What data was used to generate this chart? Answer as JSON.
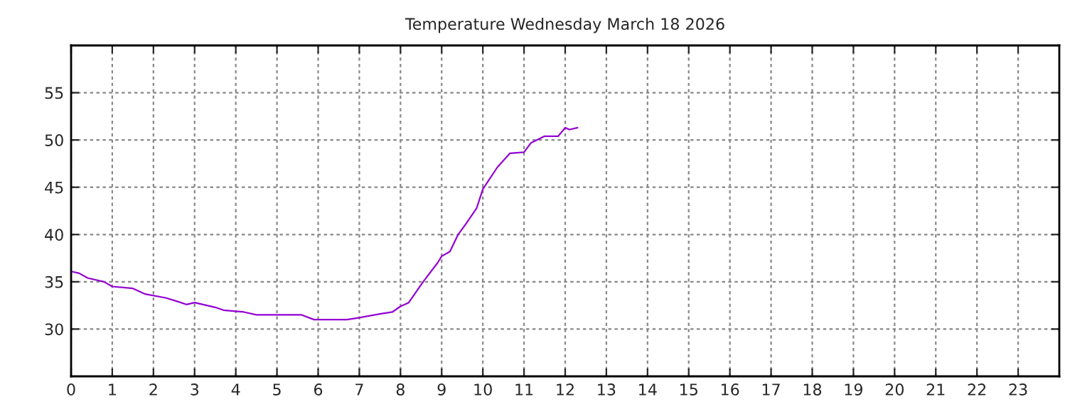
{
  "chart_data": {
    "type": "line",
    "title": "Temperature Wednesday March 18 2026",
    "series": [
      {
        "color": "#9400d3",
        "x": [
          0,
          0.2,
          0.4,
          0.8,
          1.0,
          1.5,
          1.8,
          2.3,
          2.6,
          2.8,
          3.0,
          3.5,
          3.7,
          4.2,
          4.5,
          5.6,
          5.9,
          6.7,
          7.0,
          7.5,
          7.8,
          8.0,
          8.2,
          8.55,
          8.9,
          9.0,
          9.2,
          9.4,
          9.6,
          9.85,
          10.0,
          10.35,
          10.66,
          11.0,
          11.17,
          11.5,
          11.83,
          12.0,
          12.1,
          12.3
        ],
        "values": [
          36.1,
          35.9,
          35.4,
          35.0,
          34.5,
          34.3,
          33.7,
          33.3,
          32.9,
          32.6,
          32.8,
          32.3,
          32.0,
          31.8,
          31.5,
          31.5,
          31.0,
          31.0,
          31.2,
          31.6,
          31.8,
          32.4,
          32.8,
          35.0,
          37.0,
          37.7,
          38.2,
          40.0,
          41.2,
          42.8,
          44.8,
          47.1,
          48.6,
          48.7,
          49.7,
          50.4,
          50.4,
          51.3,
          51.1,
          51.3
        ]
      }
    ],
    "xlim": [
      0,
      24
    ],
    "xticks": [
      0,
      1,
      2,
      3,
      4,
      5,
      6,
      7,
      8,
      9,
      10,
      11,
      12,
      13,
      14,
      15,
      16,
      17,
      18,
      19,
      20,
      21,
      22,
      23
    ],
    "ylim": [
      25,
      60
    ],
    "yticks": [
      30,
      35,
      40,
      45,
      50,
      55
    ],
    "grid": true,
    "legend": false,
    "marker": "none",
    "line_style": "solid"
  }
}
